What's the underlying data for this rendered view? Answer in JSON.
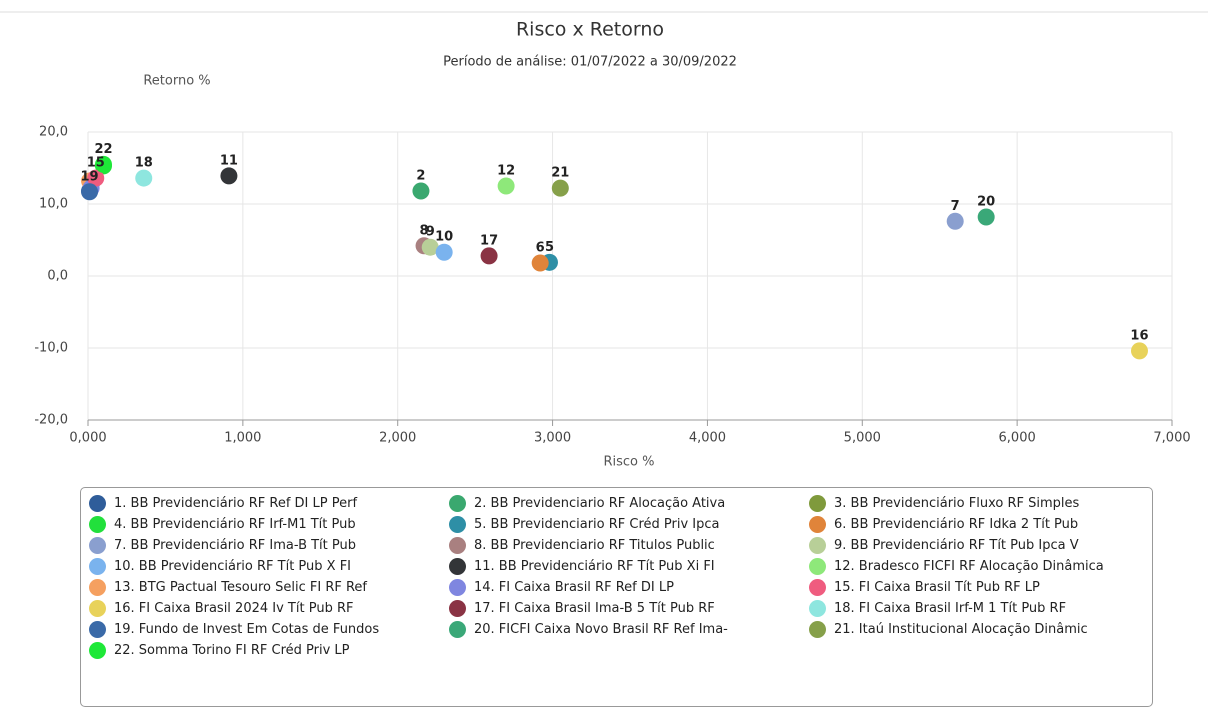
{
  "chart_data": {
    "type": "scatter",
    "title": "Risco x Retorno",
    "subtitle": "Período de análise: 01/07/2022 a 30/09/2022",
    "x_label": "Risco %",
    "y_label": "Retorno %",
    "xlim": [
      0,
      7
    ],
    "ylim": [
      -20,
      20
    ],
    "xticks": [
      {
        "value": 0,
        "label": "0,000"
      },
      {
        "value": 1,
        "label": "1,000"
      },
      {
        "value": 2,
        "label": "2,000"
      },
      {
        "value": 3,
        "label": "3,000"
      },
      {
        "value": 4,
        "label": "4,000"
      },
      {
        "value": 5,
        "label": "5,000"
      },
      {
        "value": 6,
        "label": "6,000"
      },
      {
        "value": 7,
        "label": "7,000"
      }
    ],
    "yticks": [
      {
        "value": -20,
        "label": "-20,0"
      },
      {
        "value": -10,
        "label": "-10,0"
      },
      {
        "value": 0,
        "label": "0,0"
      },
      {
        "value": 10,
        "label": "10,0"
      },
      {
        "value": 20,
        "label": "20,0"
      }
    ],
    "grid": true,
    "series": [
      {
        "name": "1. BB Previdenciário RF Ref DI LP Perf",
        "color": "#2f5d9a",
        "x": [
          0.01
        ],
        "values": [
          11.8
        ]
      },
      {
        "name": "2. BB Previdenciario RF Alocação Ativa",
        "color": "#3aa86f",
        "x": [
          2.15
        ],
        "values": [
          11.8
        ],
        "label": "2"
      },
      {
        "name": "3. BB Previdenciário Fluxo RF Simples",
        "color": "#7f9a3c",
        "x": [
          0.03
        ],
        "values": [
          13.2
        ]
      },
      {
        "name": "4. BB Previdenciário RF Irf-M1 Tít Pub",
        "color": "#22e03c",
        "x": [
          0.1
        ],
        "values": [
          15.3
        ]
      },
      {
        "name": "5. BB Previdenciario RF Créd Priv Ipca",
        "color": "#2e8fa6",
        "x": [
          2.98
        ],
        "values": [
          1.9
        ],
        "label": "5"
      },
      {
        "name": "6. BB Previdenciário RF Idka 2 Tít Pub",
        "color": "#e0843a",
        "x": [
          2.92
        ],
        "values": [
          1.8
        ],
        "label": "6"
      },
      {
        "name": "7. BB Previdenciário RF Ima-B Tít Pub",
        "color": "#8a9fcf",
        "x": [
          5.6
        ],
        "values": [
          7.6
        ],
        "label": "7"
      },
      {
        "name": "8. BB Previdenciario RF Titulos Public",
        "color": "#a98080",
        "x": [
          2.17
        ],
        "values": [
          4.2
        ],
        "label": "8"
      },
      {
        "name": "9. BB Previdenciário RF Tít Pub Ipca V",
        "color": "#b8cf98",
        "x": [
          2.21
        ],
        "values": [
          4.0
        ],
        "label": "9"
      },
      {
        "name": "10. BB Previdenciário RF Tít Pub X FI",
        "color": "#7ab3ee",
        "x": [
          2.3
        ],
        "values": [
          3.3
        ],
        "label": "10"
      },
      {
        "name": "11. BB Previdenciário RF Tít Pub Xi FI",
        "color": "#333538",
        "x": [
          0.91
        ],
        "values": [
          13.9
        ],
        "label": "11"
      },
      {
        "name": "12. Bradesco FICFI RF Alocação Dinâmica",
        "color": "#8ee87a",
        "x": [
          2.7
        ],
        "values": [
          12.5
        ],
        "label": "12"
      },
      {
        "name": "13. BTG Pactual Tesouro Selic FI RF Ref",
        "color": "#f5a060",
        "x": [
          0.01
        ],
        "values": [
          13.2
        ]
      },
      {
        "name": "14. FI Caixa Brasil RF Ref DI LP",
        "color": "#7f86e0",
        "x": [
          0.02
        ],
        "values": [
          12.2
        ]
      },
      {
        "name": "15. FI Caixa Brasil Tít Pub RF LP",
        "color": "#ef5c7f",
        "x": [
          0.05
        ],
        "values": [
          13.6
        ],
        "label": "15"
      },
      {
        "name": "16. FI Caixa Brasil 2024 Iv Tít Pub RF",
        "color": "#e8d25a",
        "x": [
          6.79
        ],
        "values": [
          -10.4
        ],
        "label": "16"
      },
      {
        "name": "17. FI Caixa Brasil Ima-B 5 Tít Pub RF",
        "color": "#8a3344",
        "x": [
          2.59
        ],
        "values": [
          2.8
        ],
        "label": "17"
      },
      {
        "name": "18. FI Caixa Brasil Irf-M 1 Tít Pub RF",
        "color": "#8ee6df",
        "x": [
          0.36
        ],
        "values": [
          13.6
        ],
        "label": "18"
      },
      {
        "name": "19. Fundo de Invest Em Cotas de Fundos",
        "color": "#3a6aa8",
        "x": [
          0.01
        ],
        "values": [
          11.7
        ],
        "label": "19"
      },
      {
        "name": "20. FICFI Caixa Novo Brasil RF Ref Ima-",
        "color": "#3aa878",
        "x": [
          5.8
        ],
        "values": [
          8.2
        ],
        "label": "20"
      },
      {
        "name": "21. Itaú Institucional Alocação Dinâmic",
        "color": "#86a04a",
        "x": [
          3.05
        ],
        "values": [
          12.2
        ],
        "label": "21"
      },
      {
        "name": "22. Somma Torino FI RF Créd Priv LP",
        "color": "#1ee838",
        "x": [
          0.1
        ],
        "values": [
          15.5
        ],
        "label": "22"
      }
    ]
  }
}
